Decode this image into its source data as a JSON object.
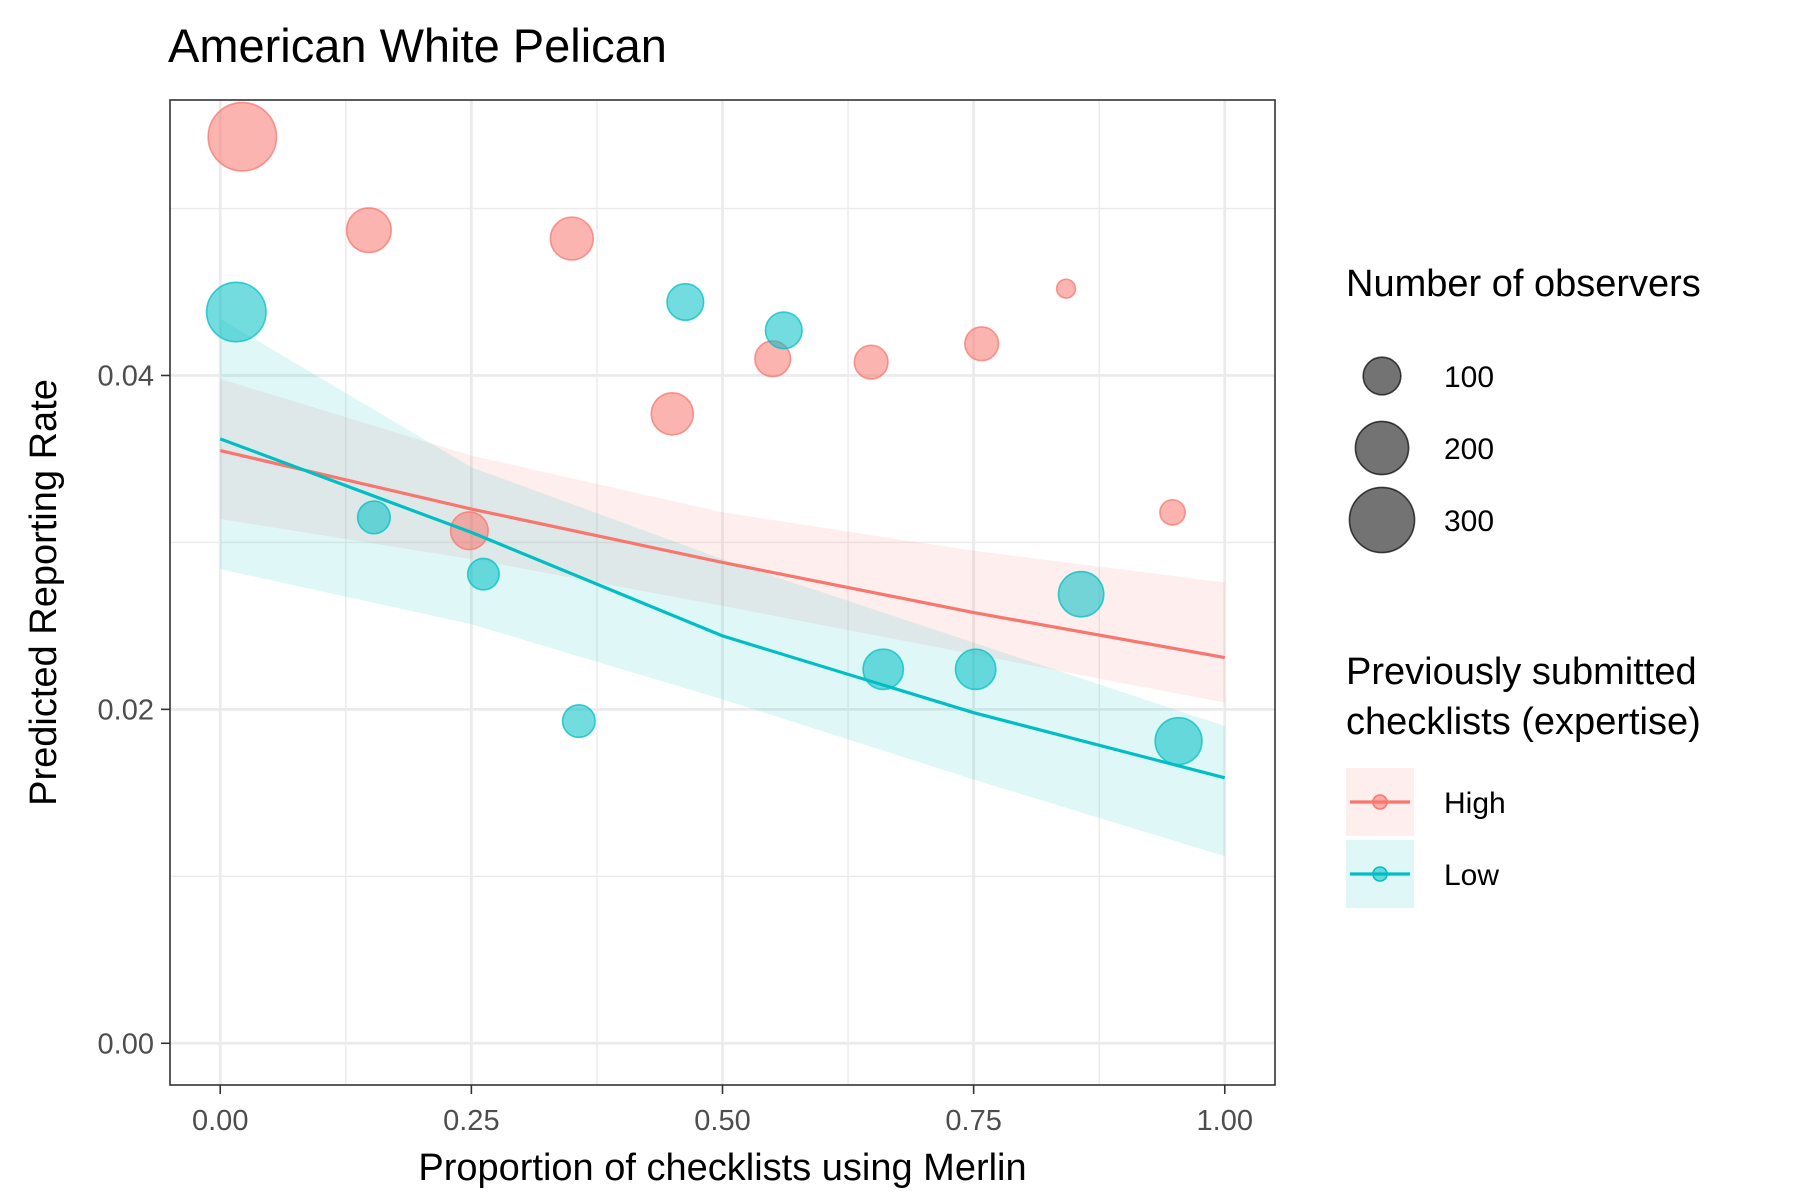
{
  "chart_data": {
    "type": "scatter",
    "title": "American White Pelican",
    "xlabel": "Proportion of checklists using Merlin",
    "ylabel": "Predicted Reporting Rate",
    "xlim": [
      -0.05,
      1.05
    ],
    "ylim": [
      -0.0025,
      0.0565
    ],
    "x_ticks": [
      "0.00",
      "0.25",
      "0.50",
      "0.75",
      "1.00"
    ],
    "x_tick_values": [
      0,
      0.25,
      0.5,
      0.75,
      1.0
    ],
    "y_ticks": [
      "0.00",
      "0.02",
      "0.04"
    ],
    "y_tick_values": [
      0,
      0.02,
      0.04
    ],
    "grid": true,
    "size_legend": {
      "title": "Number of observers",
      "entries": [
        {
          "label": "100",
          "value": 100
        },
        {
          "label": "200",
          "value": 200
        },
        {
          "label": "300",
          "value": 300
        }
      ]
    },
    "color_legend": {
      "title_lines": [
        "Previously submitted",
        "checklists (expertise)"
      ],
      "placement": "right"
    },
    "series": [
      {
        "name": "High",
        "color": "#F8766D",
        "points": [
          {
            "x": 0.022,
            "y": 0.0543,
            "n": 330
          },
          {
            "x": 0.148,
            "y": 0.0487,
            "n": 140
          },
          {
            "x": 0.35,
            "y": 0.0482,
            "n": 130
          },
          {
            "x": 0.842,
            "y": 0.0452,
            "n": 25
          },
          {
            "x": 0.758,
            "y": 0.0419,
            "n": 80
          },
          {
            "x": 0.55,
            "y": 0.041,
            "n": 90
          },
          {
            "x": 0.648,
            "y": 0.0408,
            "n": 80
          },
          {
            "x": 0.45,
            "y": 0.0377,
            "n": 125
          },
          {
            "x": 0.948,
            "y": 0.0318,
            "n": 45
          },
          {
            "x": 0.248,
            "y": 0.0307,
            "n": 100
          }
        ],
        "fit": {
          "x": [
            0,
            0.25,
            0.5,
            0.75,
            1.0
          ],
          "y": [
            0.0355,
            0.032,
            0.0288,
            0.0258,
            0.0231
          ]
        },
        "ci_lower": {
          "x": [
            0,
            0.25,
            0.5,
            0.75,
            1.0
          ],
          "y": [
            0.0314,
            0.029,
            0.0262,
            0.0233,
            0.0204
          ]
        },
        "ci_upper": {
          "x": [
            0,
            0.25,
            0.5,
            0.75,
            1.0
          ],
          "y": [
            0.0398,
            0.0352,
            0.0318,
            0.0295,
            0.0276
          ]
        }
      },
      {
        "name": "Low",
        "color": "#00BFC4",
        "points": [
          {
            "x": 0.016,
            "y": 0.0438,
            "n": 250
          },
          {
            "x": 0.463,
            "y": 0.0444,
            "n": 95
          },
          {
            "x": 0.561,
            "y": 0.0427,
            "n": 95
          },
          {
            "x": 0.153,
            "y": 0.0315,
            "n": 75
          },
          {
            "x": 0.262,
            "y": 0.0281,
            "n": 70
          },
          {
            "x": 0.857,
            "y": 0.0269,
            "n": 145
          },
          {
            "x": 0.66,
            "y": 0.0224,
            "n": 115
          },
          {
            "x": 0.752,
            "y": 0.0224,
            "n": 115
          },
          {
            "x": 0.357,
            "y": 0.0193,
            "n": 75
          },
          {
            "x": 0.954,
            "y": 0.0181,
            "n": 155
          }
        ],
        "fit": {
          "x": [
            0,
            0.25,
            0.5,
            0.75,
            1.0
          ],
          "y": [
            0.0362,
            0.0306,
            0.0244,
            0.0198,
            0.0159
          ]
        },
        "ci_lower": {
          "x": [
            0,
            0.25,
            0.5,
            0.75,
            1.0
          ],
          "y": [
            0.0284,
            0.0251,
            0.0206,
            0.0158,
            0.0112
          ]
        },
        "ci_upper": {
          "x": [
            0,
            0.25,
            0.5,
            0.75,
            1.0
          ],
          "y": [
            0.0434,
            0.0345,
            0.029,
            0.024,
            0.019
          ]
        }
      }
    ]
  }
}
